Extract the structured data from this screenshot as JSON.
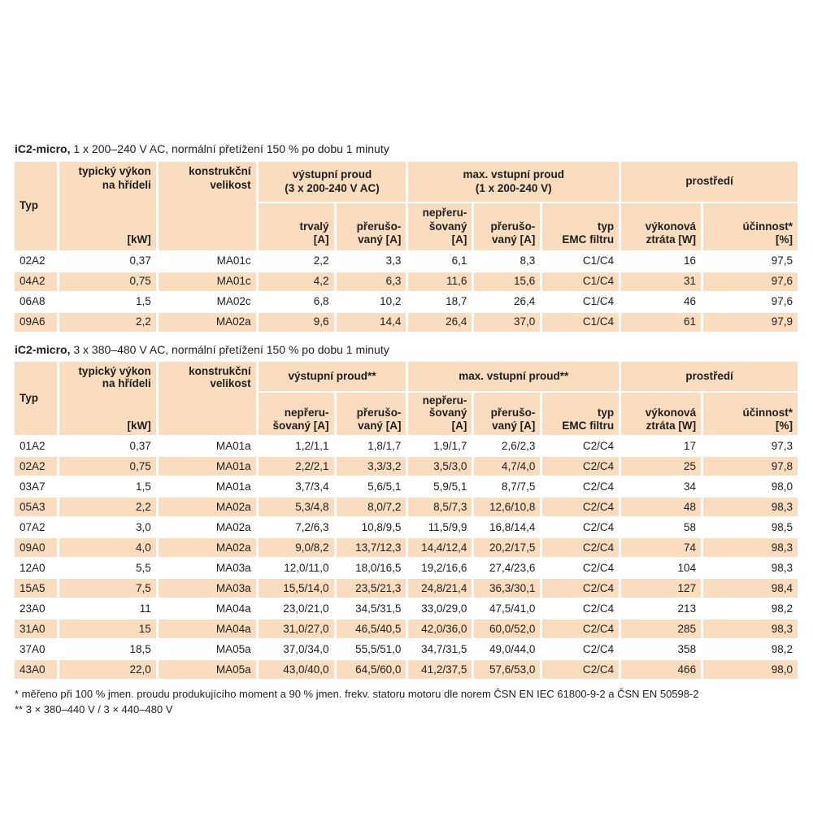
{
  "page": {
    "background": "#ffffff",
    "accent_color": "#fadcbe",
    "text_color": "#1e1e1c"
  },
  "tables": [
    {
      "title_product": "iC2-micro,",
      "title_rest": " 1 x 200–240 V AC, normální přetížení 150 % po dobu 1 minuty",
      "header": {
        "typ": "Typ",
        "power": "typický výkon\nna hřídeli",
        "power_unit": "[kW]",
        "size": "konstrukční\nvelikost",
        "output_group": "výstupní proud\n(3 x 200-240 V AC)",
        "input_group": "max. vstupní proud\n(1 x 200-240 V)",
        "env_group": "prostředí",
        "out_a": "trvalý\n[A]",
        "out_b": "přerušo-\nvaný [A]",
        "in_a": "nepřeru-\nšovaný [A]",
        "in_b": "přerušo-\nvaný [A]",
        "emc": "typ\nEMC filtru",
        "loss": "výkonová\nztráta [W]",
        "eff": "účinnost*\n[%]"
      },
      "rows": [
        [
          "02A2",
          "0,37",
          "MA01c",
          "2,2",
          "3,3",
          "6,1",
          "8,3",
          "C1/C4",
          "16",
          "97,5"
        ],
        [
          "04A2",
          "0,75",
          "MA01c",
          "4,2",
          "6,3",
          "11,6",
          "15,6",
          "C1/C4",
          "31",
          "97,6"
        ],
        [
          "06A8",
          "1,5",
          "MA02c",
          "6,8",
          "10,2",
          "18,7",
          "26,4",
          "C1/C4",
          "46",
          "97,6"
        ],
        [
          "09A6",
          "2,2",
          "MA02a",
          "9,6",
          "14,4",
          "26,4",
          "37,0",
          "C1/C4",
          "61",
          "97,9"
        ]
      ]
    },
    {
      "title_product": "iC2-micro,",
      "title_rest": " 3 x 380–480 V AC, normální přetížení 150 % po dobu 1 minuty",
      "header": {
        "typ": "Typ",
        "power": "typický výkon\nna hřídeli",
        "power_unit": "[kW]",
        "size": "konstrukční\nvelikost",
        "output_group": "výstupní proud**",
        "input_group": "max. vstupní proud**",
        "env_group": "prostředí",
        "out_a": "nepřeru-\nšovaný [A]",
        "out_b": "přerušo-\nvaný [A]",
        "in_a": "nepřeru-\nšovaný [A]",
        "in_b": "přerušo-\nvaný [A]",
        "emc": "typ\nEMC filtru",
        "loss": "výkonová\nztráta [W]",
        "eff": "účinnost*\n[%]"
      },
      "rows": [
        [
          "01A2",
          "0,37",
          "MA01a",
          "1,2/1,1",
          "1,8/1,7",
          "1,9/1,7",
          "2,6/2,3",
          "C2/C4",
          "17",
          "97,3"
        ],
        [
          "02A2",
          "0,75",
          "MA01a",
          "2,2/2,1",
          "3,3/3,2",
          "3,5/3,0",
          "4,7/4,0",
          "C2/C4",
          "25",
          "97,8"
        ],
        [
          "03A7",
          "1,5",
          "MA01a",
          "3,7/3,4",
          "5,6/5,1",
          "5,9/5,1",
          "8,7/7,5",
          "C2/C4",
          "34",
          "98,0"
        ],
        [
          "05A3",
          "2,2",
          "MA02a",
          "5,3/4,8",
          "8,0/7,2",
          "8,5/7,3",
          "12,6/10,8",
          "C2/C4",
          "48",
          "98,3"
        ],
        [
          "07A2",
          "3,0",
          "MA02a",
          "7,2/6,3",
          "10,8/9,5",
          "11,5/9,9",
          "16,8/14,4",
          "C2/C4",
          "58",
          "98,5"
        ],
        [
          "09A0",
          "4,0",
          "MA02a",
          "9,0/8,2",
          "13,7/12,3",
          "14,4/12,4",
          "20,2/17,5",
          "C2/C4",
          "74",
          "98,3"
        ],
        [
          "12A0",
          "5,5",
          "MA03a",
          "12,0/11,0",
          "18,0/16,5",
          "19,2/16,6",
          "27,4/23,6",
          "C2/C4",
          "104",
          "98,3"
        ],
        [
          "15A5",
          "7,5",
          "MA03a",
          "15,5/14,0",
          "23,5/21,3",
          "24,8/21,4",
          "36,3/30,1",
          "C2/C4",
          "127",
          "98,4"
        ],
        [
          "23A0",
          "11",
          "MA04a",
          "23,0/21,0",
          "34,5/31,5",
          "33,0/29,0",
          "47,5/41,0",
          "C2/C4",
          "213",
          "98,2"
        ],
        [
          "31A0",
          "15",
          "MA04a",
          "31,0/27,0",
          "46,5/40,5",
          "42,0/36,0",
          "60,0/52,0",
          "C2/C4",
          "285",
          "98,3"
        ],
        [
          "37A0",
          "18,5",
          "MA05a",
          "37,0/34,0",
          "55,5/51,0",
          "34,7/31,5",
          "49,0/44,0",
          "C2/C4",
          "358",
          "98,2"
        ],
        [
          "43A0",
          "22,0",
          "MA05a",
          "43,0/40,0",
          "64,5/60,0",
          "41,2/37,5",
          "57,6/53,0",
          "C2/C4",
          "466",
          "98,0"
        ]
      ]
    }
  ],
  "footnotes": [
    "* měřeno při 100 % jmen. proudu produkujícího moment a 90 % jmen. frekv. statoru motoru dle norem ČSN EN IEC 61800-9-2 a ČSN EN 50598-2",
    "** 3 × 380–440 V / 3 × 440–480 V"
  ]
}
